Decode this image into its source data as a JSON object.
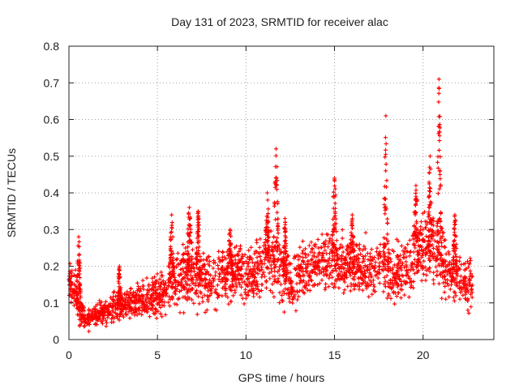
{
  "chart_data": {
    "type": "scatter",
    "title": "Day 131 of 2023, SRMTID for receiver alac",
    "xlabel": "GPS time / hours",
    "ylabel": "SRMTID / TECUs",
    "xlim": [
      0,
      24
    ],
    "ylim": [
      0,
      0.8
    ],
    "xticks": [
      0,
      5,
      10,
      15,
      20
    ],
    "xtick_labels": [
      "0",
      "5",
      "10",
      "15",
      "20"
    ],
    "yticks": [
      0,
      0.1,
      0.2,
      0.3,
      0.4,
      0.5,
      0.6,
      0.7,
      0.8
    ],
    "ytick_labels": [
      "0",
      "0.1",
      "0.2",
      "0.3",
      "0.4",
      "0.5",
      "0.6",
      "0.7",
      "0.8"
    ],
    "grid": true,
    "marker": "+",
    "color": "#ff0000",
    "series": [
      {
        "name": "SRMTID",
        "baseline": [
          {
            "t": 0.0,
            "y": 0.16,
            "spread": 0.03
          },
          {
            "t": 0.4,
            "y": 0.13,
            "spread": 0.03
          },
          {
            "t": 0.6,
            "y": 0.08,
            "spread": 0.03
          },
          {
            "t": 1.0,
            "y": 0.06,
            "spread": 0.02
          },
          {
            "t": 1.6,
            "y": 0.065,
            "spread": 0.02
          },
          {
            "t": 2.5,
            "y": 0.085,
            "spread": 0.025
          },
          {
            "t": 3.5,
            "y": 0.1,
            "spread": 0.025
          },
          {
            "t": 4.5,
            "y": 0.11,
            "spread": 0.03
          },
          {
            "t": 5.5,
            "y": 0.14,
            "spread": 0.04
          },
          {
            "t": 6.5,
            "y": 0.18,
            "spread": 0.06
          },
          {
            "t": 7.5,
            "y": 0.16,
            "spread": 0.05
          },
          {
            "t": 8.5,
            "y": 0.17,
            "spread": 0.05
          },
          {
            "t": 9.5,
            "y": 0.18,
            "spread": 0.05
          },
          {
            "t": 10.5,
            "y": 0.18,
            "spread": 0.05
          },
          {
            "t": 11.5,
            "y": 0.22,
            "spread": 0.06
          },
          {
            "t": 12.5,
            "y": 0.15,
            "spread": 0.05
          },
          {
            "t": 13.5,
            "y": 0.2,
            "spread": 0.05
          },
          {
            "t": 14.5,
            "y": 0.22,
            "spread": 0.05
          },
          {
            "t": 15.5,
            "y": 0.2,
            "spread": 0.05
          },
          {
            "t": 16.5,
            "y": 0.19,
            "spread": 0.05
          },
          {
            "t": 17.5,
            "y": 0.2,
            "spread": 0.05
          },
          {
            "t": 18.5,
            "y": 0.18,
            "spread": 0.05
          },
          {
            "t": 19.5,
            "y": 0.23,
            "spread": 0.06
          },
          {
            "t": 20.5,
            "y": 0.26,
            "spread": 0.07
          },
          {
            "t": 21.5,
            "y": 0.18,
            "spread": 0.05
          },
          {
            "t": 22.8,
            "y": 0.15,
            "spread": 0.04
          }
        ],
        "bursts": [
          {
            "t": 0.55,
            "width": 0.12,
            "peak": 0.28
          },
          {
            "t": 2.85,
            "width": 0.1,
            "peak": 0.2
          },
          {
            "t": 5.8,
            "width": 0.12,
            "peak": 0.34
          },
          {
            "t": 6.8,
            "width": 0.15,
            "peak": 0.36
          },
          {
            "t": 7.3,
            "width": 0.12,
            "peak": 0.35
          },
          {
            "t": 9.1,
            "width": 0.15,
            "peak": 0.3
          },
          {
            "t": 11.2,
            "width": 0.12,
            "peak": 0.4
          },
          {
            "t": 11.7,
            "width": 0.15,
            "peak": 0.52
          },
          {
            "t": 12.2,
            "width": 0.1,
            "peak": 0.33
          },
          {
            "t": 15.0,
            "width": 0.15,
            "peak": 0.44
          },
          {
            "t": 16.0,
            "width": 0.12,
            "peak": 0.34
          },
          {
            "t": 17.9,
            "width": 0.12,
            "peak": 0.61
          },
          {
            "t": 19.6,
            "width": 0.15,
            "peak": 0.42
          },
          {
            "t": 20.4,
            "width": 0.12,
            "peak": 0.5
          },
          {
            "t": 20.9,
            "width": 0.12,
            "peak": 0.71
          },
          {
            "t": 21.8,
            "width": 0.12,
            "peak": 0.34
          }
        ],
        "t_start": 0.0,
        "t_end": 22.8
      }
    ]
  }
}
